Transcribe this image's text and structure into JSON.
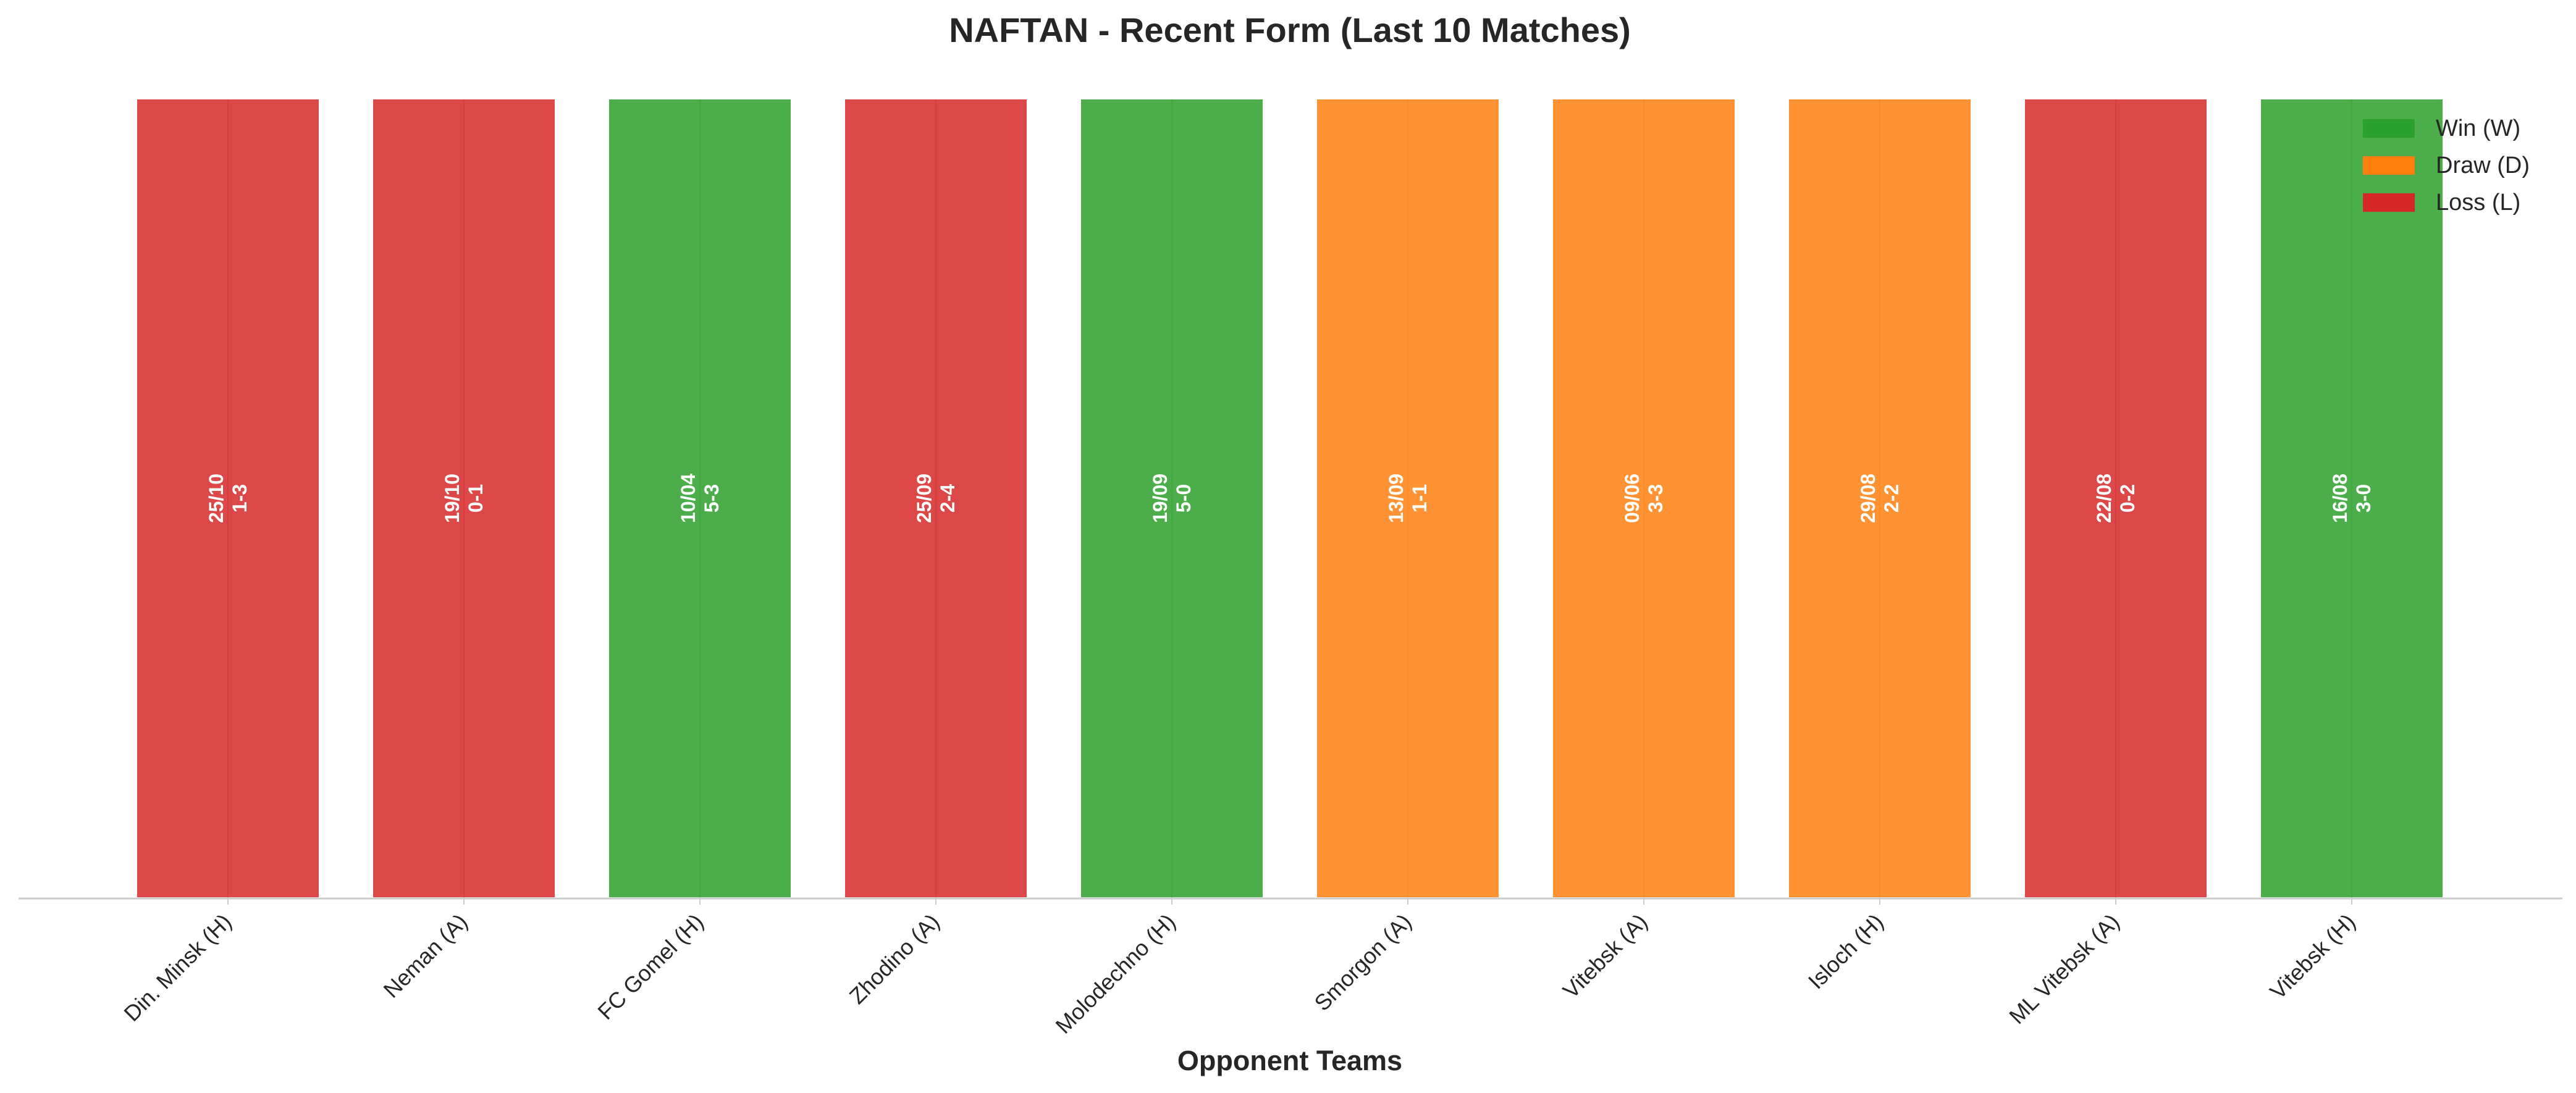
{
  "chart_data": {
    "type": "bar",
    "title": "NAFTAN - Recent Form (Last 10 Matches)",
    "xlabel": "Opponent Teams",
    "ylabel": "",
    "grid": false,
    "legend_placement": "top-right",
    "categories": [
      "Din. Minsk (H)",
      "Neman (A)",
      "FC Gomel (H)",
      "Zhodino (A)",
      "Molodechno (H)",
      "Smorgon (A)",
      "Vitebsk (A)",
      "Isloch (H)",
      "ML Vitebsk (A)",
      "Vitebsk (H)"
    ],
    "values": [
      1,
      1,
      1,
      1,
      1,
      1,
      1,
      1,
      1,
      1
    ],
    "results": [
      "L",
      "L",
      "W",
      "L",
      "W",
      "D",
      "D",
      "D",
      "L",
      "W"
    ],
    "dates": [
      "25/10",
      "19/10",
      "10/04",
      "25/09",
      "19/09",
      "13/09",
      "09/06",
      "29/08",
      "22/08",
      "16/08"
    ],
    "scores": [
      "1-3",
      "0-1",
      "5-3",
      "2-4",
      "5-0",
      "1-1",
      "3-3",
      "2-2",
      "0-2",
      "3-0"
    ],
    "legend": [
      {
        "key": "W",
        "label": "Win (W)",
        "color": "#2ca02c"
      },
      {
        "key": "D",
        "label": "Draw (D)",
        "color": "#ff7f0e"
      },
      {
        "key": "L",
        "label": "Loss (L)",
        "color": "#d62728"
      }
    ]
  }
}
